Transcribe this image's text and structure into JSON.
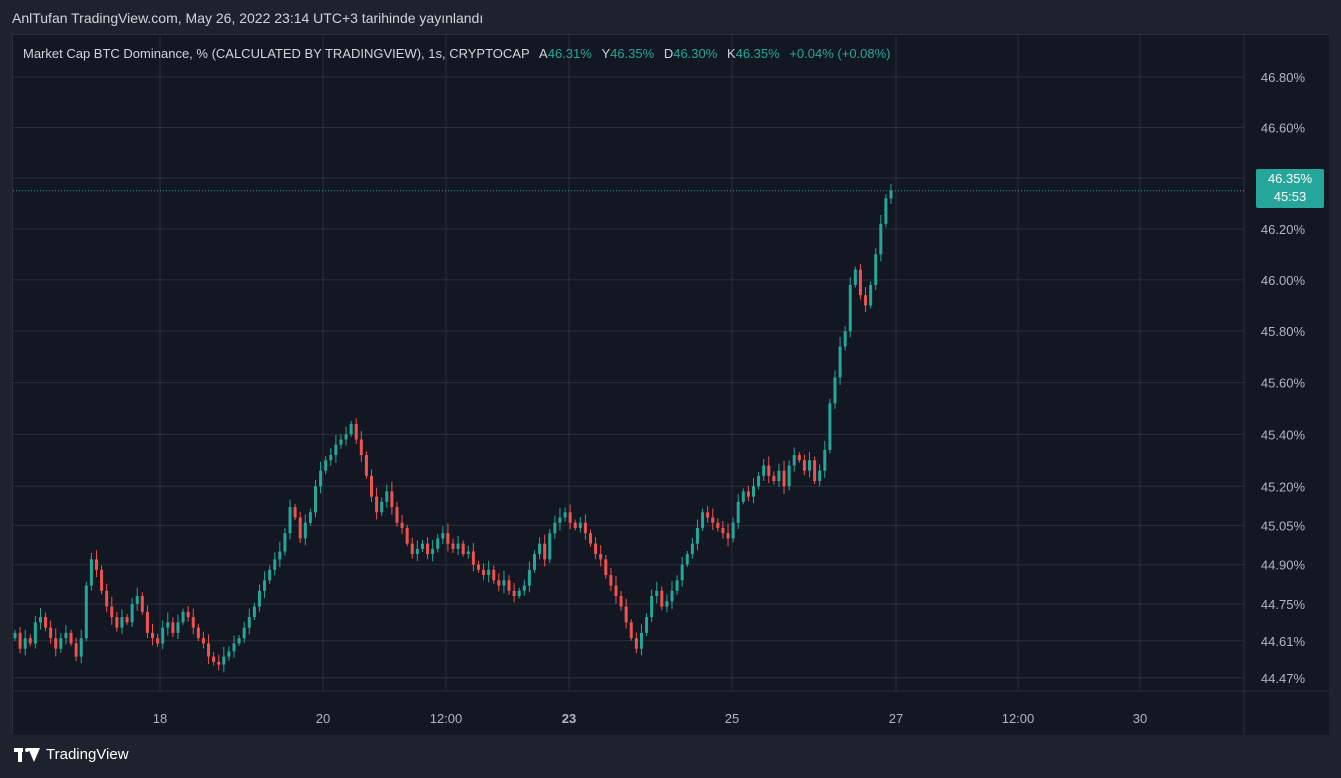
{
  "header": {
    "caption": "AnlTufan TradingView.com, May 26, 2022 23:14 UTC+3 tarihinde yayınlandı"
  },
  "legend": {
    "symbol": "Market Cap BTC Dominance, % (CALCULATED BY TRADINGVIEW), 1s, CRYPTOCAP",
    "a_label": "A",
    "a_value": "46.31%",
    "y_label": "Y",
    "y_value": "46.35%",
    "d_label": "D",
    "d_value": "46.30%",
    "k_label": "K",
    "k_value": "46.35%",
    "change": "+0.04% (+0.08%)"
  },
  "price_tag": {
    "value": "46.35%",
    "countdown": "45:53"
  },
  "footer": {
    "brand": "TradingView"
  },
  "colors": {
    "up": "#26a69a",
    "down": "#ef5350",
    "background": "#131722",
    "grid": "#2a2e39",
    "last_price_line": "#26a69a"
  },
  "chart_data": {
    "type": "candlestick",
    "title": "Market Cap BTC Dominance, % (CALCULATED BY TRADINGVIEW), 1s, CRYPTOCAP",
    "y_axis": {
      "ticks": [
        46.8,
        46.6,
        46.4,
        46.2,
        46.0,
        45.8,
        45.6,
        45.4,
        45.2,
        45.05,
        44.9,
        44.75,
        44.61,
        44.47
      ],
      "tick_labels": [
        "46.80%",
        "46.60%",
        "46.40%",
        "46.20%",
        "46.00%",
        "45.80%",
        "45.60%",
        "45.40%",
        "45.20%",
        "45.05%",
        "44.90%",
        "44.75%",
        "44.61%",
        "44.47%"
      ],
      "scale": "log",
      "range": [
        44.42,
        46.88
      ]
    },
    "x_axis": {
      "tick_labels": [
        "18",
        "20",
        "12:00",
        "23",
        "25",
        "27",
        "12:00",
        "30"
      ],
      "bold_labels": [
        "23"
      ]
    },
    "last_price": 46.35,
    "grid": true,
    "closes": [
      44.64,
      44.58,
      44.62,
      44.6,
      44.68,
      44.7,
      44.66,
      44.62,
      44.58,
      44.62,
      44.64,
      44.6,
      44.55,
      44.62,
      44.82,
      44.92,
      44.88,
      44.8,
      44.74,
      44.7,
      44.66,
      44.7,
      44.68,
      44.75,
      44.78,
      44.72,
      44.64,
      44.62,
      44.6,
      44.66,
      44.68,
      44.64,
      44.68,
      44.72,
      44.7,
      44.66,
      44.62,
      44.6,
      44.55,
      44.53,
      44.52,
      44.55,
      44.57,
      44.6,
      44.62,
      44.66,
      44.7,
      44.74,
      44.8,
      44.84,
      44.88,
      44.92,
      44.95,
      45.02,
      45.12,
      45.08,
      45.0,
      45.06,
      45.1,
      45.2,
      45.26,
      45.3,
      45.32,
      45.36,
      45.38,
      45.4,
      45.44,
      45.38,
      45.32,
      45.24,
      45.16,
      45.1,
      45.14,
      45.18,
      45.12,
      45.06,
      45.04,
      44.98,
      44.94,
      44.96,
      44.98,
      44.94,
      44.96,
      45.0,
      45.02,
      44.98,
      44.96,
      44.98,
      44.94,
      44.95,
      44.9,
      44.88,
      44.86,
      44.88,
      44.84,
      44.82,
      44.84,
      44.8,
      44.78,
      44.8,
      44.82,
      44.88,
      44.94,
      44.98,
      44.92,
      45.02,
      45.06,
      45.08,
      45.1,
      45.06,
      45.04,
      45.06,
      45.02,
      44.98,
      44.94,
      44.92,
      44.86,
      44.82,
      44.78,
      44.74,
      44.68,
      44.62,
      44.58,
      44.64,
      44.7,
      44.78,
      44.8,
      44.74,
      44.76,
      44.8,
      44.84,
      44.9,
      44.94,
      44.98,
      45.04,
      45.1,
      45.08,
      45.06,
      45.04,
      45.02,
      45.0,
      45.06,
      45.14,
      45.18,
      45.16,
      45.2,
      45.24,
      45.28,
      45.24,
      45.22,
      45.26,
      45.2,
      45.28,
      45.32,
      45.3,
      45.26,
      45.3,
      45.22,
      45.26,
      45.34,
      45.52,
      45.62,
      45.74,
      45.8,
      45.98,
      46.04,
      45.94,
      45.9,
      45.98,
      46.1,
      46.22,
      46.32,
      46.35
    ]
  }
}
